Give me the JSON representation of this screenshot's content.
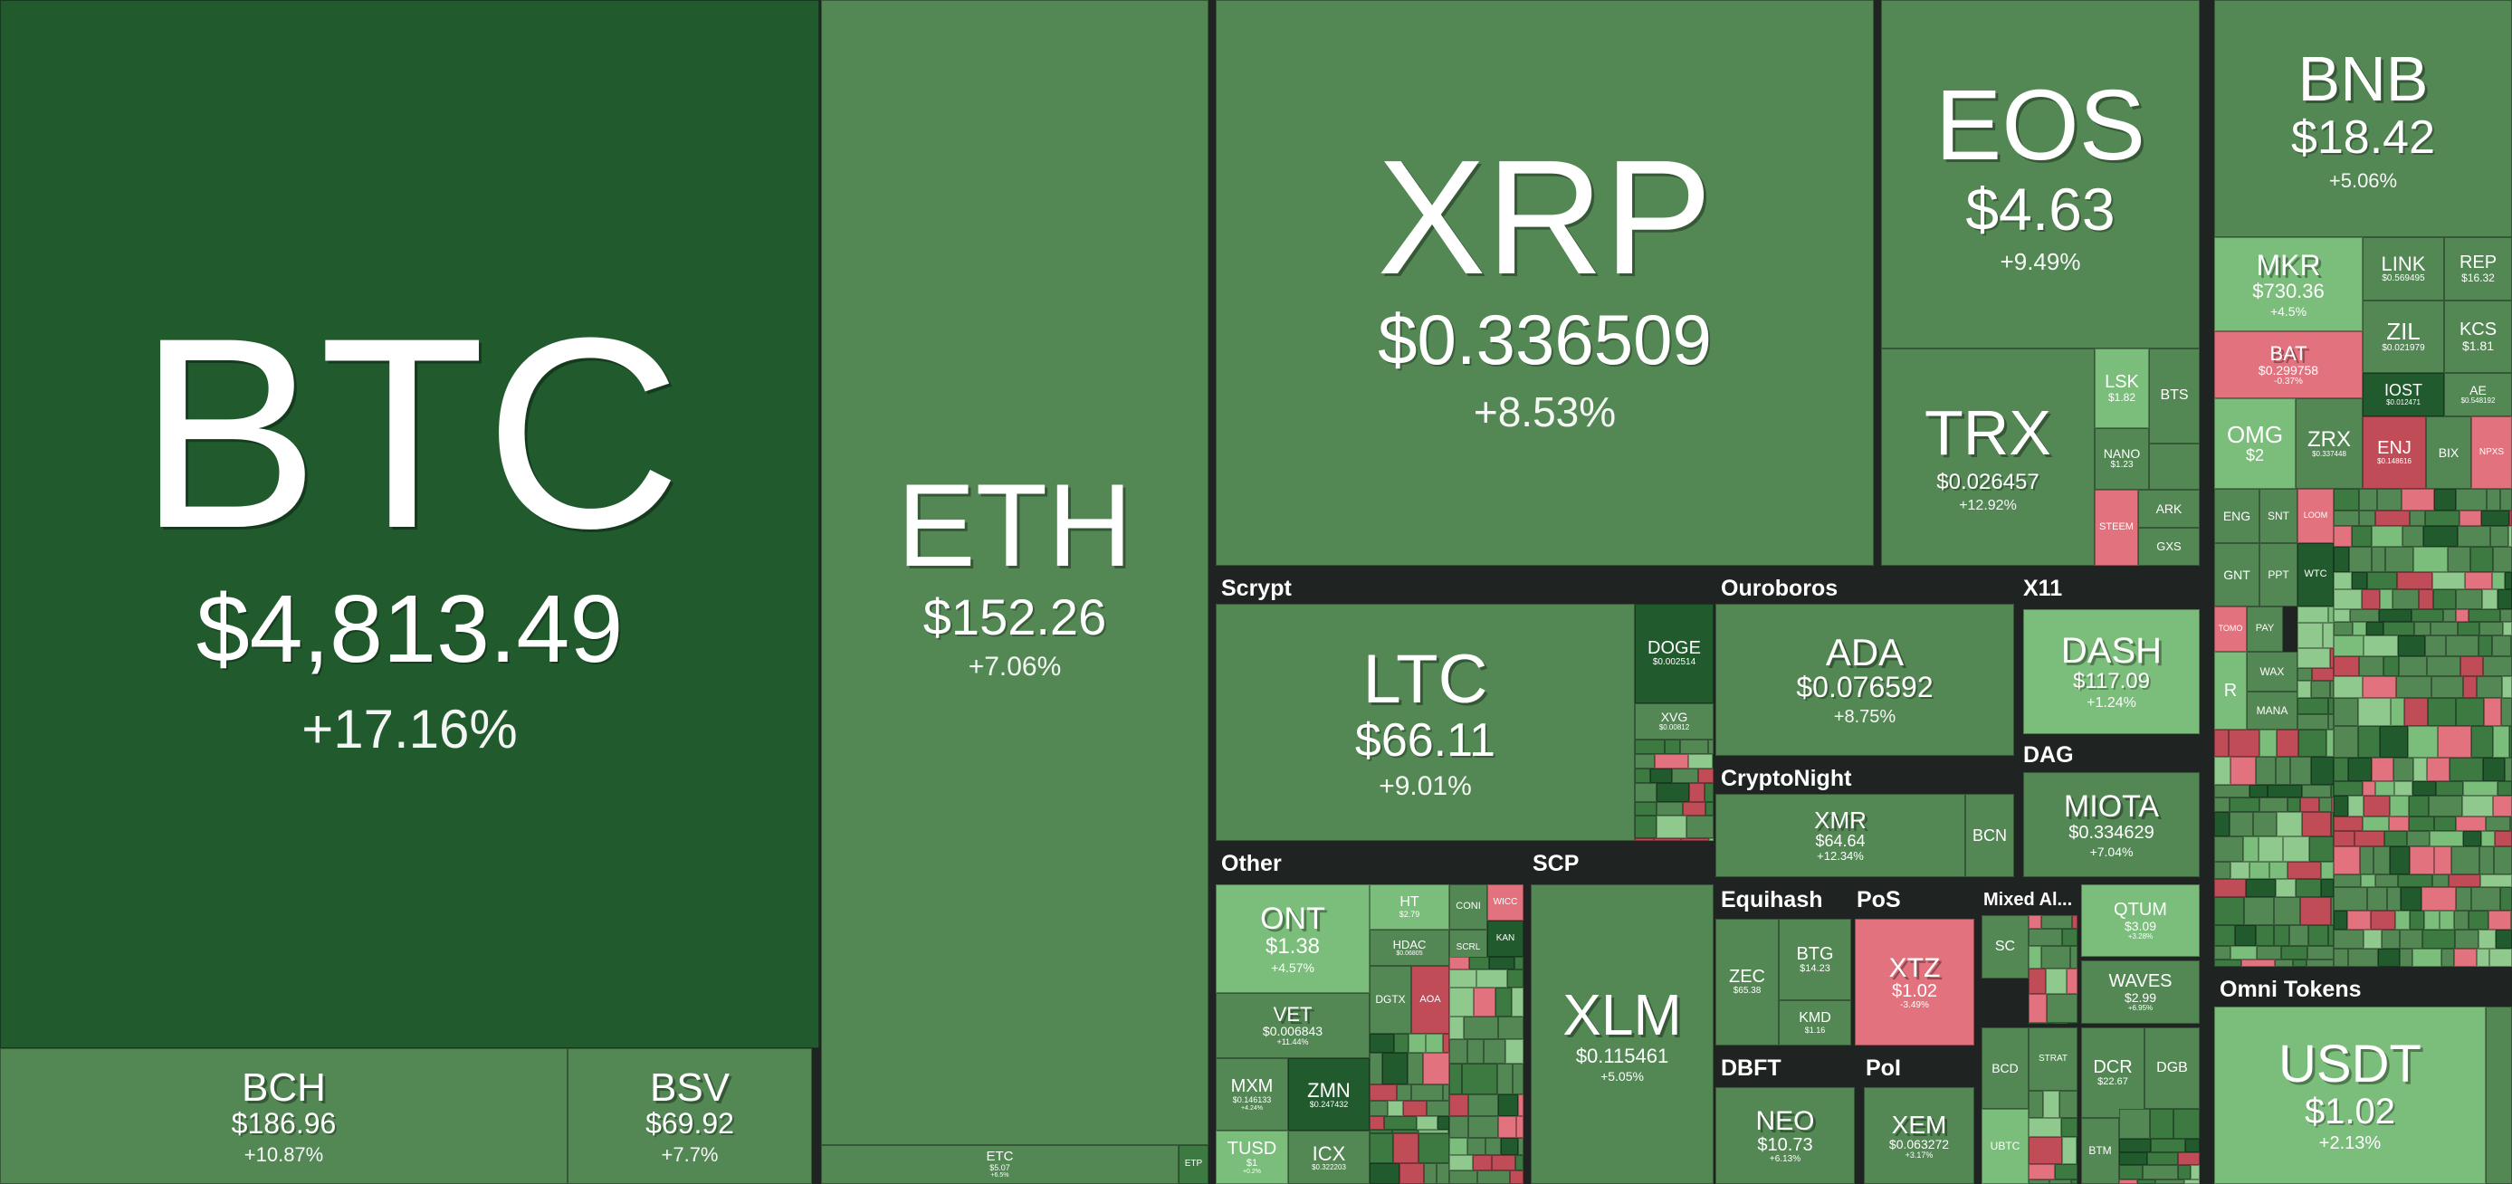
{
  "colors": {
    "strong_gain": "#215a2d",
    "gain": "#538754",
    "light_gain": "#7bbd7a",
    "loss": "#e2727d",
    "background": "#1f2321"
  },
  "sectors": {
    "scrypt": "Scrypt",
    "ouroboros": "Ouroboros",
    "x11": "X11",
    "cryptonight": "CryptoNight",
    "dag": "DAG",
    "other": "Other",
    "scp": "SCP",
    "equihash": "Equihash",
    "pos": "PoS",
    "mixed": "Mixed Al...",
    "dbft": "DBFT",
    "poi": "PoI",
    "omni": "Omni Tokens"
  },
  "coins": {
    "btc": {
      "symbol": "BTC",
      "price": "$4,813.49",
      "change": "+17.16%"
    },
    "bch": {
      "symbol": "BCH",
      "price": "$186.96",
      "change": "+10.87%"
    },
    "bsv": {
      "symbol": "BSV",
      "price": "$69.92",
      "change": "+7.7%"
    },
    "eth": {
      "symbol": "ETH",
      "price": "$152.26",
      "change": "+7.06%"
    },
    "etc": {
      "symbol": "ETC",
      "price": "$5.07",
      "change": "+6.5%"
    },
    "etp": {
      "symbol": "ETP"
    },
    "xrp": {
      "symbol": "XRP",
      "price": "$0.336509",
      "change": "+8.53%"
    },
    "eos": {
      "symbol": "EOS",
      "price": "$4.63",
      "change": "+9.49%"
    },
    "trx": {
      "symbol": "TRX",
      "price": "$0.026457",
      "change": "+12.92%"
    },
    "lsk": {
      "symbol": "LSK",
      "price": "$1.82"
    },
    "bts": {
      "symbol": "BTS"
    },
    "nano": {
      "symbol": "NANO",
      "price": "$1.23"
    },
    "steem": {
      "symbol": "STEEM"
    },
    "ark": {
      "symbol": "ARK"
    },
    "gxs": {
      "symbol": "GXS"
    },
    "bnb": {
      "symbol": "BNB",
      "price": "$18.42",
      "change": "+5.06%"
    },
    "mkr": {
      "symbol": "MKR",
      "price": "$730.36",
      "change": "+4.5%"
    },
    "link": {
      "symbol": "LINK",
      "price": "$0.569495"
    },
    "rep": {
      "symbol": "REP",
      "price": "$16.32"
    },
    "bat": {
      "symbol": "BAT",
      "price": "$0.299758",
      "change": "-0.37%"
    },
    "zil": {
      "symbol": "ZIL",
      "price": "$0.021979"
    },
    "kcs": {
      "symbol": "KCS",
      "price": "$1.81"
    },
    "iost": {
      "symbol": "IOST",
      "price": "$0.012471"
    },
    "ae": {
      "symbol": "AE",
      "price": "$0.548192"
    },
    "omg": {
      "symbol": "OMG",
      "price": "$2"
    },
    "zrx": {
      "symbol": "ZRX",
      "price": "$0.337448"
    },
    "enj": {
      "symbol": "ENJ",
      "price": "$0.148616"
    },
    "bix": {
      "symbol": "BIX"
    },
    "npxs": {
      "symbol": "NPXS"
    },
    "eng": {
      "symbol": "ENG"
    },
    "snt": {
      "symbol": "SNT"
    },
    "loom": {
      "symbol": "LOOM"
    },
    "gnt": {
      "symbol": "GNT"
    },
    "ppt": {
      "symbol": "PPT"
    },
    "wtc": {
      "symbol": "WTC"
    },
    "tomo": {
      "symbol": "TOMO"
    },
    "pay": {
      "symbol": "PAY"
    },
    "wax": {
      "symbol": "WAX"
    },
    "mana": {
      "symbol": "MANA"
    },
    "r": {
      "symbol": "R"
    },
    "ltc": {
      "symbol": "LTC",
      "price": "$66.11",
      "change": "+9.01%"
    },
    "doge": {
      "symbol": "DOGE",
      "price": "$0.002514"
    },
    "xvg": {
      "symbol": "XVG",
      "price": "$0.00812"
    },
    "ada": {
      "symbol": "ADA",
      "price": "$0.076592",
      "change": "+8.75%"
    },
    "dash": {
      "symbol": "DASH",
      "price": "$117.09",
      "change": "+1.24%"
    },
    "xmr": {
      "symbol": "XMR",
      "price": "$64.64",
      "change": "+12.34%"
    },
    "bcn": {
      "symbol": "BCN"
    },
    "miota": {
      "symbol": "MIOTA",
      "price": "$0.334629",
      "change": "+7.04%"
    },
    "ont": {
      "symbol": "ONT",
      "price": "$1.38",
      "change": "+4.57%"
    },
    "ht": {
      "symbol": "HT",
      "price": "$2.79"
    },
    "coni": {
      "symbol": "CONI"
    },
    "wicc": {
      "symbol": "WICC"
    },
    "hdac": {
      "symbol": "HDAC",
      "price": "$0.06805"
    },
    "scrl": {
      "symbol": "SCRL"
    },
    "kan": {
      "symbol": "KAN"
    },
    "vet": {
      "symbol": "VET",
      "price": "$0.006843",
      "change": "+11.44%"
    },
    "dgtx": {
      "symbol": "DGTX"
    },
    "aoa": {
      "symbol": "AOA"
    },
    "mxm": {
      "symbol": "MXM",
      "price": "$0.146133",
      "change": "+4.24%"
    },
    "zmn": {
      "symbol": "ZMN",
      "price": "$0.247432"
    },
    "tusd": {
      "symbol": "TUSD",
      "price": "$1",
      "change": "+0.2%"
    },
    "icx": {
      "symbol": "ICX",
      "price": "$0.322203"
    },
    "xlm": {
      "symbol": "XLM",
      "price": "$0.115461",
      "change": "+5.05%"
    },
    "zec": {
      "symbol": "ZEC",
      "price": "$65.38"
    },
    "btg": {
      "symbol": "BTG",
      "price": "$14.23"
    },
    "kmd": {
      "symbol": "KMD",
      "price": "$1.16"
    },
    "xtz": {
      "symbol": "XTZ",
      "price": "$1.02",
      "change": "-3.49%"
    },
    "sc": {
      "symbol": "SC"
    },
    "qtum": {
      "symbol": "QTUM",
      "price": "$3.09",
      "change": "+3.28%"
    },
    "waves": {
      "symbol": "WAVES",
      "price": "$2.99",
      "change": "+6.95%"
    },
    "neo": {
      "symbol": "NEO",
      "price": "$10.73",
      "change": "+6.13%"
    },
    "xem": {
      "symbol": "XEM",
      "price": "$0.063272",
      "change": "+3.17%"
    },
    "bcd": {
      "symbol": "BCD"
    },
    "strat": {
      "symbol": "STRAT"
    },
    "dcr": {
      "symbol": "DCR",
      "price": "$22.67"
    },
    "dgb": {
      "symbol": "DGB"
    },
    "ubtc": {
      "symbol": "UBTC"
    },
    "btm": {
      "symbol": "BTM"
    },
    "usdt": {
      "symbol": "USDT",
      "price": "$1.02",
      "change": "+2.13%"
    }
  }
}
